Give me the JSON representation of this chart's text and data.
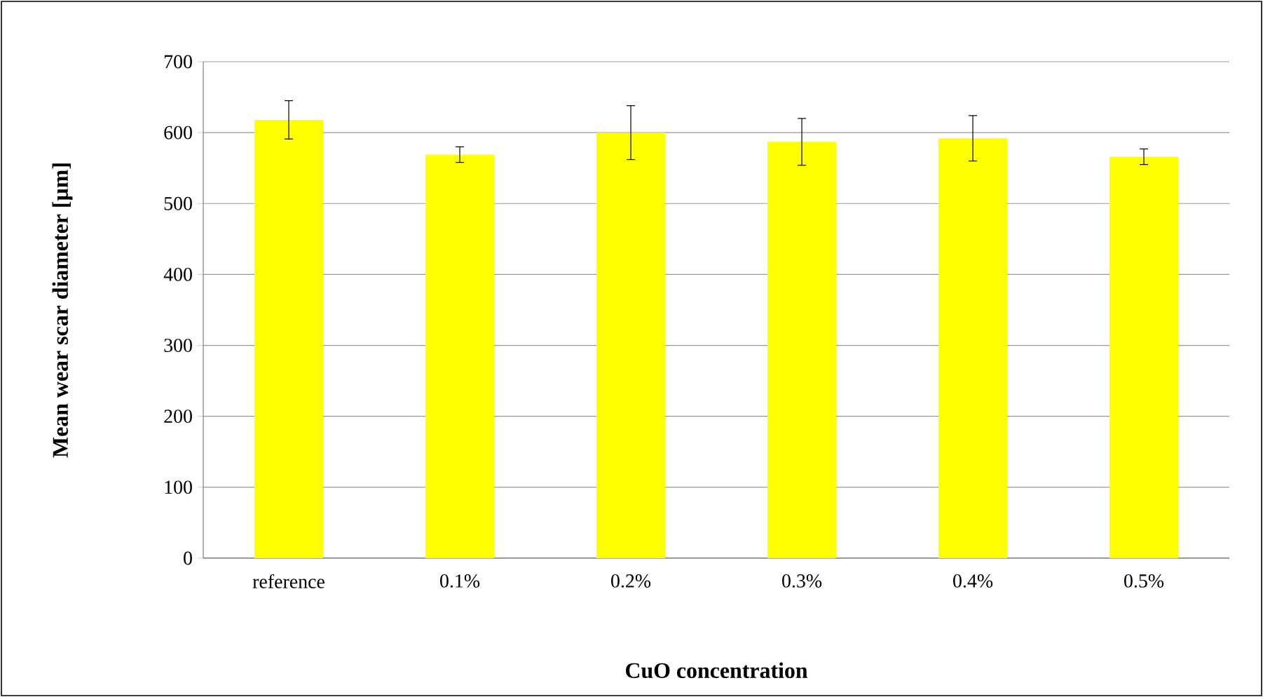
{
  "chart_data": {
    "type": "bar",
    "xlabel": "CuO concentration",
    "ylabel": "Mean wear scar diameter [µm]",
    "categories": [
      "reference",
      "0.1%",
      "0.2%",
      "0.3%",
      "0.4%",
      "0.5%"
    ],
    "values": [
      618,
      569,
      600,
      587,
      592,
      566
    ],
    "errors": [
      27,
      11,
      38,
      33,
      32,
      11
    ],
    "color": "#ffff00",
    "ylim": [
      0,
      700
    ],
    "yticks": [
      0,
      100,
      200,
      300,
      400,
      500,
      600,
      700
    ],
    "grid": "y"
  }
}
